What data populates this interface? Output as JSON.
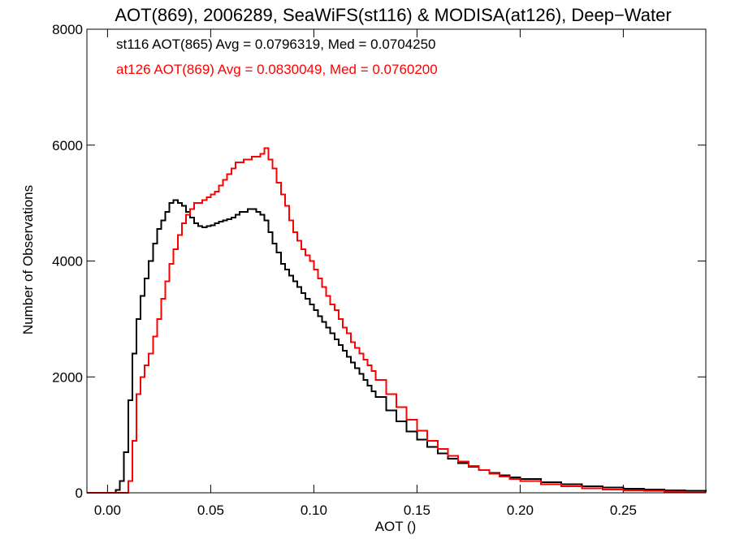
{
  "chart_data": {
    "type": "line",
    "title": "AOT(869), 2006289, SeaWiFS(st116) & MODISA(at126), Deep−Water",
    "xlabel": "AOT ()",
    "ylabel": "Number of Observations",
    "xlim": [
      -0.01,
      0.29
    ],
    "ylim": [
      0,
      8000
    ],
    "x_ticks": [
      0.0,
      0.05,
      0.1,
      0.15,
      0.2,
      0.25
    ],
    "x_tick_labels": [
      "0.00",
      "0.05",
      "0.10",
      "0.15",
      "0.20",
      "0.25"
    ],
    "y_ticks": [
      0,
      2000,
      4000,
      6000,
      8000
    ],
    "y_tick_labels": [
      "0",
      "2000",
      "4000",
      "6000",
      "8000"
    ],
    "annotations": [
      {
        "text": "st116 AOT(865) Avg = 0.0796319, Med = 0.0704250",
        "color": "#000000"
      },
      {
        "text": "at126 AOT(869) Avg = 0.0830049, Med = 0.0760200",
        "color": "#ff0000"
      }
    ],
    "series": [
      {
        "color": "#000000",
        "x": [
          -0.01,
          0.0,
          0.004,
          0.006,
          0.008,
          0.01,
          0.012,
          0.014,
          0.016,
          0.018,
          0.02,
          0.022,
          0.024,
          0.026,
          0.028,
          0.03,
          0.032,
          0.034,
          0.036,
          0.038,
          0.04,
          0.042,
          0.044,
          0.046,
          0.048,
          0.05,
          0.052,
          0.054,
          0.056,
          0.058,
          0.06,
          0.062,
          0.064,
          0.066,
          0.068,
          0.07,
          0.072,
          0.074,
          0.076,
          0.078,
          0.08,
          0.082,
          0.084,
          0.086,
          0.088,
          0.09,
          0.092,
          0.094,
          0.096,
          0.098,
          0.1,
          0.102,
          0.104,
          0.106,
          0.108,
          0.11,
          0.112,
          0.114,
          0.116,
          0.118,
          0.12,
          0.122,
          0.124,
          0.126,
          0.128,
          0.13,
          0.135,
          0.14,
          0.145,
          0.15,
          0.155,
          0.16,
          0.165,
          0.17,
          0.175,
          0.18,
          0.185,
          0.19,
          0.195,
          0.2,
          0.21,
          0.22,
          0.23,
          0.24,
          0.25,
          0.26,
          0.27,
          0.28,
          0.29
        ],
        "y": [
          0,
          0,
          50,
          200,
          700,
          1600,
          2400,
          3000,
          3400,
          3700,
          4000,
          4300,
          4550,
          4700,
          4850,
          5000,
          5050,
          5000,
          4950,
          4850,
          4750,
          4650,
          4600,
          4580,
          4600,
          4620,
          4650,
          4680,
          4700,
          4720,
          4750,
          4800,
          4850,
          4850,
          4900,
          4900,
          4850,
          4800,
          4700,
          4500,
          4300,
          4150,
          3950,
          3850,
          3750,
          3650,
          3550,
          3450,
          3350,
          3250,
          3150,
          3050,
          2950,
          2850,
          2750,
          2650,
          2550,
          2450,
          2350,
          2250,
          2150,
          2050,
          1950,
          1850,
          1750,
          1650,
          1420,
          1230,
          1060,
          920,
          790,
          680,
          590,
          510,
          445,
          390,
          340,
          300,
          265,
          235,
          185,
          145,
          115,
          90,
          70,
          55,
          42,
          32,
          25
        ]
      },
      {
        "color": "#ff0000",
        "x": [
          -0.01,
          0.0,
          0.008,
          0.01,
          0.012,
          0.014,
          0.016,
          0.018,
          0.02,
          0.022,
          0.024,
          0.026,
          0.028,
          0.03,
          0.032,
          0.034,
          0.036,
          0.038,
          0.04,
          0.042,
          0.044,
          0.046,
          0.048,
          0.05,
          0.052,
          0.054,
          0.056,
          0.058,
          0.06,
          0.062,
          0.064,
          0.066,
          0.068,
          0.07,
          0.072,
          0.074,
          0.076,
          0.078,
          0.08,
          0.082,
          0.084,
          0.086,
          0.088,
          0.09,
          0.092,
          0.094,
          0.096,
          0.098,
          0.1,
          0.102,
          0.104,
          0.106,
          0.108,
          0.11,
          0.112,
          0.114,
          0.116,
          0.118,
          0.12,
          0.122,
          0.124,
          0.126,
          0.128,
          0.13,
          0.135,
          0.14,
          0.145,
          0.15,
          0.155,
          0.16,
          0.165,
          0.17,
          0.175,
          0.18,
          0.185,
          0.19,
          0.195,
          0.2,
          0.21,
          0.22,
          0.23,
          0.24,
          0.25,
          0.26,
          0.27,
          0.28,
          0.29
        ],
        "y": [
          0,
          0,
          0,
          200,
          900,
          1700,
          2000,
          2200,
          2400,
          2700,
          3000,
          3350,
          3650,
          3950,
          4200,
          4450,
          4650,
          4800,
          4900,
          5000,
          5000,
          5050,
          5100,
          5150,
          5200,
          5300,
          5400,
          5500,
          5600,
          5700,
          5700,
          5750,
          5750,
          5800,
          5800,
          5850,
          5950,
          5750,
          5600,
          5350,
          5150,
          4950,
          4700,
          4500,
          4350,
          4200,
          4100,
          4000,
          3850,
          3700,
          3550,
          3400,
          3250,
          3150,
          3000,
          2850,
          2750,
          2600,
          2500,
          2400,
          2300,
          2200,
          2100,
          1950,
          1700,
          1480,
          1260,
          1070,
          900,
          760,
          640,
          540,
          460,
          390,
          330,
          280,
          240,
          205,
          150,
          110,
          80,
          58,
          42,
          32,
          22,
          16,
          12
        ]
      }
    ]
  }
}
